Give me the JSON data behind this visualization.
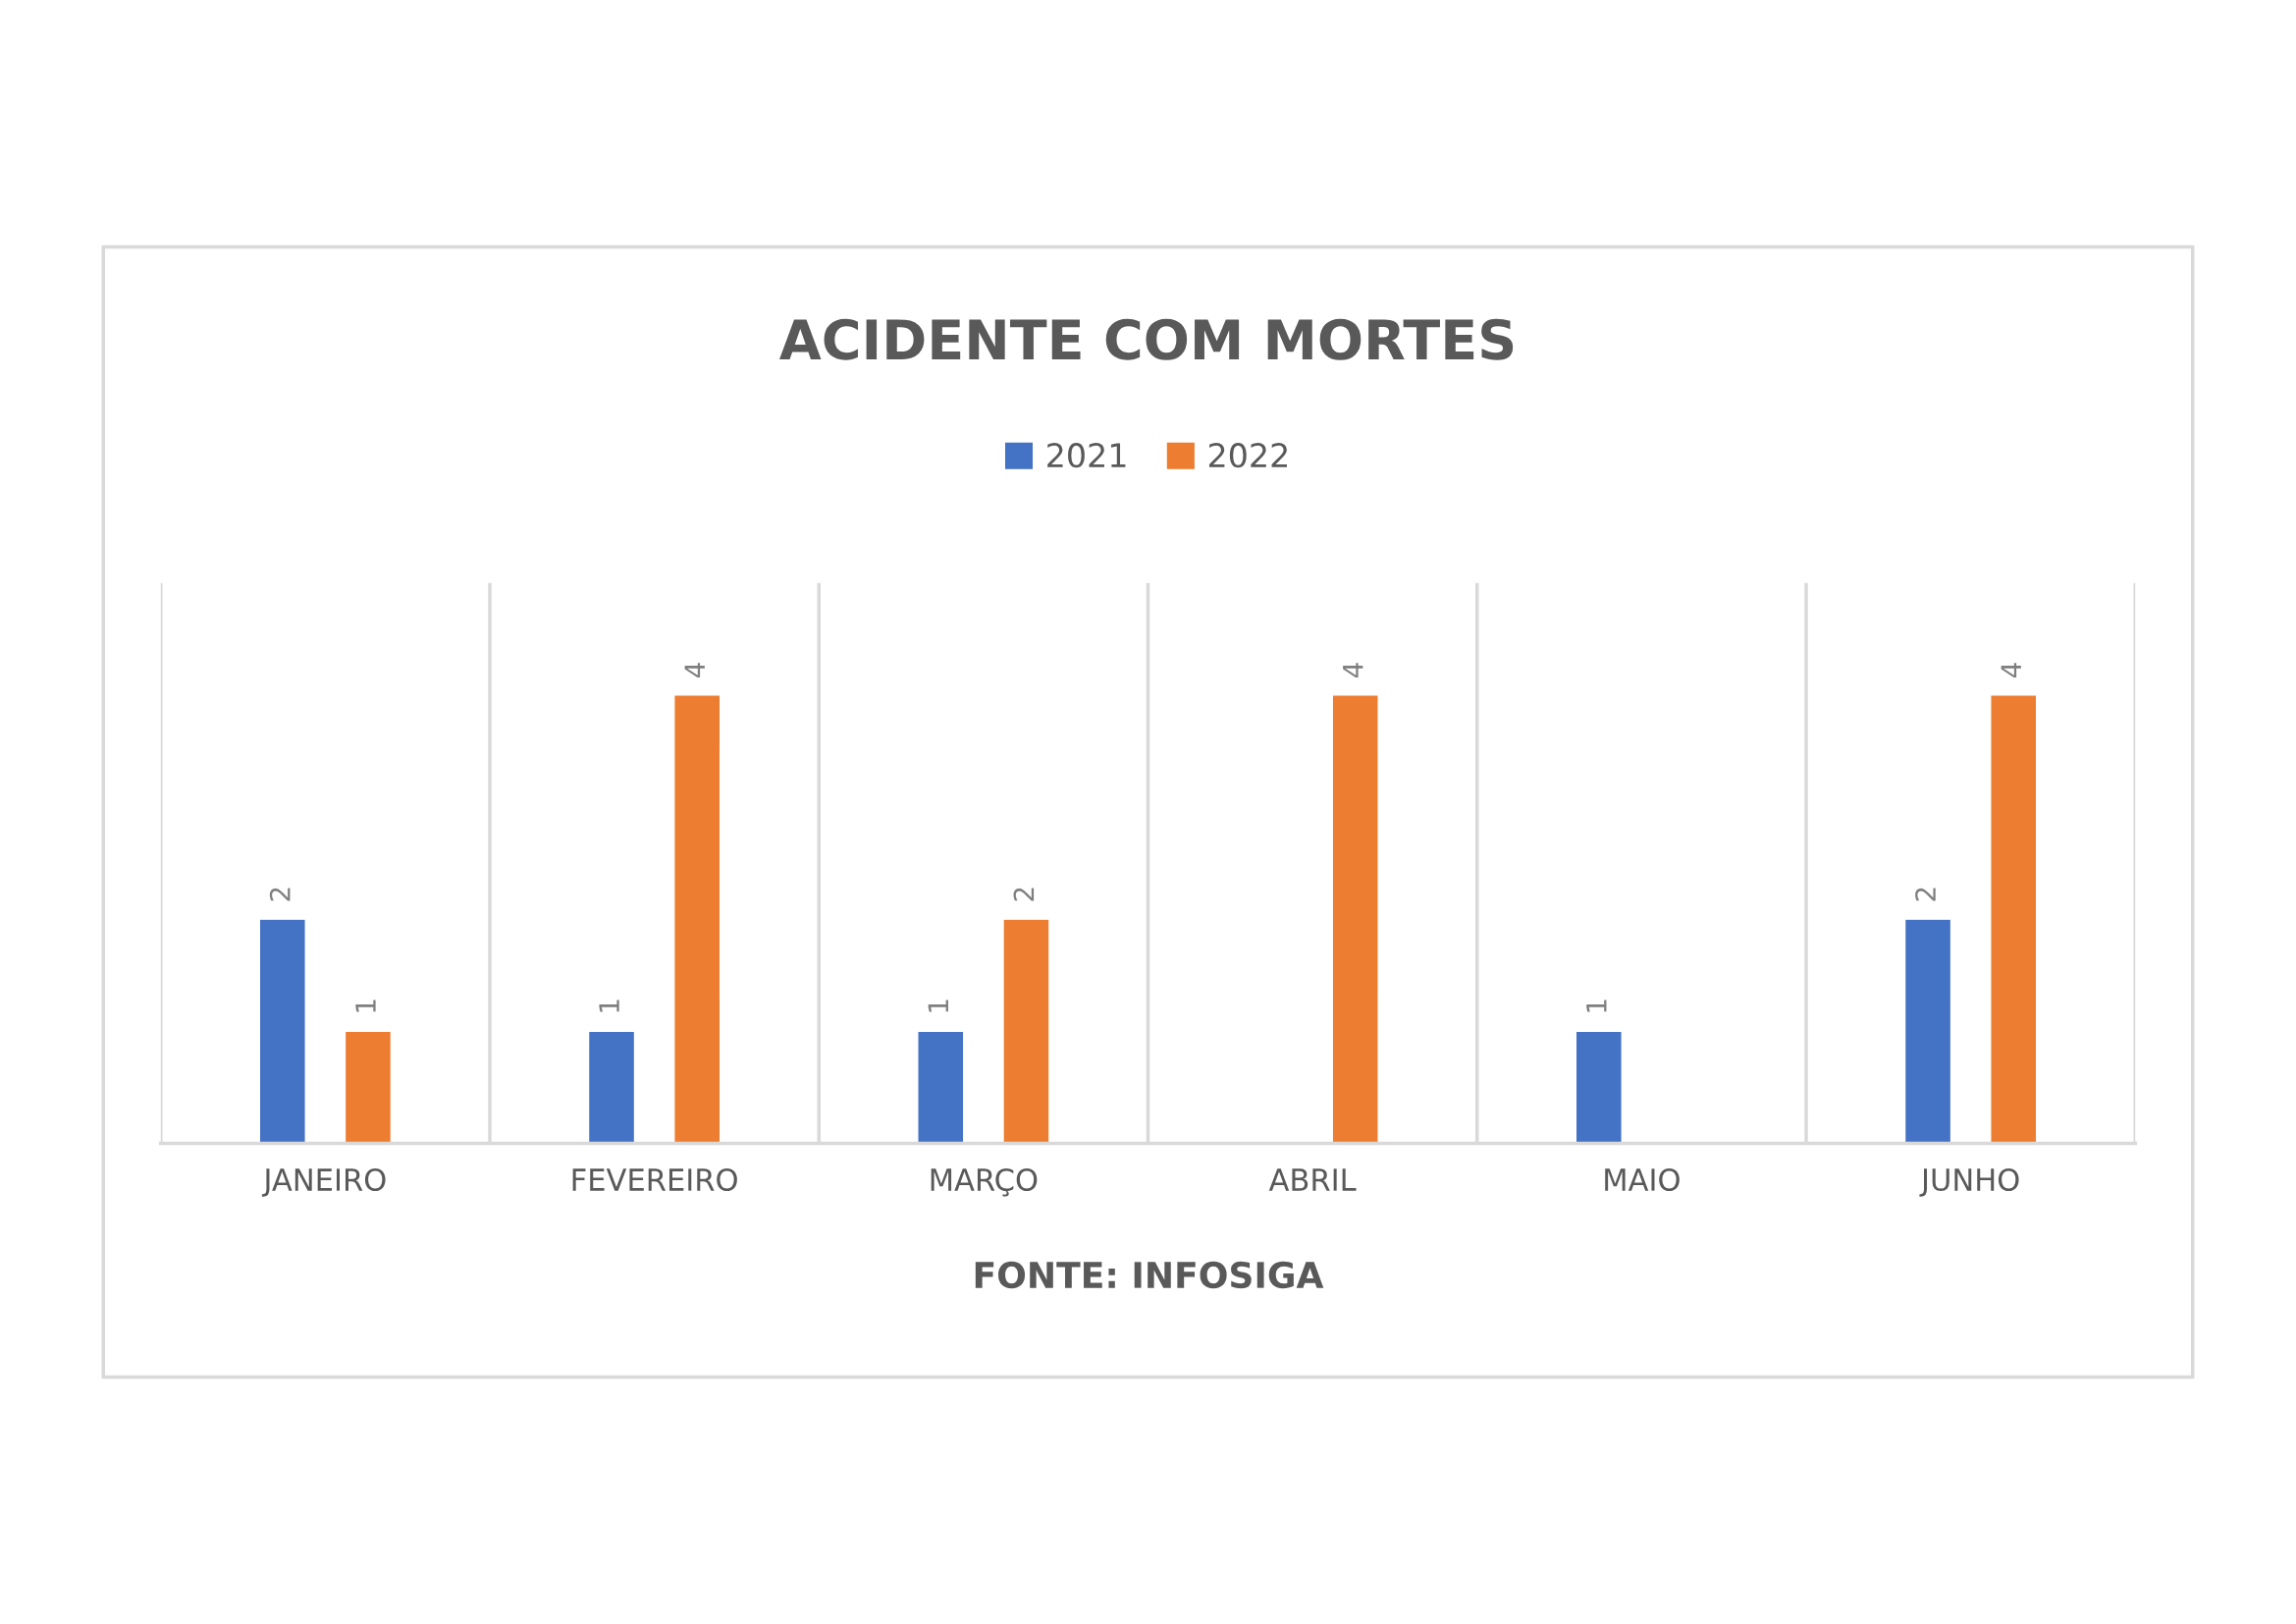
{
  "chart_data": {
    "type": "bar",
    "title": "ACIDENTE COM MORTES",
    "categories": [
      "JANEIRO",
      "FEVEREIRO",
      "MARÇO",
      "ABRIL",
      "MAIO",
      "JUNHO"
    ],
    "series": [
      {
        "name": "2021",
        "color": "#4472c4",
        "values": [
          2,
          1,
          1,
          null,
          1,
          2
        ]
      },
      {
        "name": "2022",
        "color": "#ed7d31",
        "values": [
          1,
          4,
          2,
          4,
          null,
          4
        ]
      }
    ],
    "ylim": [
      0,
      5
    ],
    "data_labels": true,
    "grid": "x",
    "legend": "top",
    "tick_labels": "x",
    "annotations": [
      "FONTE: INFOSIGA"
    ]
  }
}
